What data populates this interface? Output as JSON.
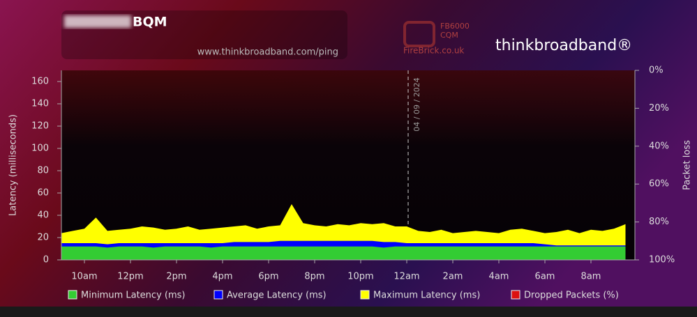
{
  "chart_data": {
    "type": "area",
    "title": "BQM",
    "subtitle": "www.thinkbroadband.com/ping",
    "logos": [
      "FB6000",
      "CQM",
      "FireBrick.co.uk",
      "thinkbroadband®"
    ],
    "annotation": "04 / 09 / 2024",
    "y_label": "Latency (milliseconds)",
    "y2_label": "Packet loss",
    "categories": [
      null,
      null,
      "10am",
      null,
      null,
      null,
      "12pm",
      null,
      null,
      null,
      "2pm",
      null,
      null,
      null,
      "4pm",
      null,
      null,
      null,
      "6pm",
      null,
      null,
      null,
      "8pm",
      null,
      null,
      null,
      "10pm",
      null,
      null,
      null,
      "12am",
      null,
      null,
      null,
      "2am",
      null,
      null,
      null,
      "4am",
      null,
      null,
      null,
      "6am",
      null,
      null,
      null,
      "8am",
      null,
      null,
      null
    ],
    "ylim": [
      0,
      170
    ],
    "yticks": [
      0,
      20,
      40,
      60,
      80,
      100,
      120,
      140,
      160
    ],
    "y2lim": [
      100,
      0
    ],
    "y2ticks": [
      {
        "value": 0,
        "label": "0%"
      },
      {
        "value": 20,
        "label": "20%"
      },
      {
        "value": 40,
        "label": "40%"
      },
      {
        "value": 60,
        "label": "60%"
      },
      {
        "value": 80,
        "label": "80%"
      },
      {
        "value": 100,
        "label": "100%"
      }
    ],
    "series": [
      {
        "name": "Maximum Latency (ms)",
        "color": "#ffff00",
        "values": [
          24,
          26,
          28,
          38,
          26,
          27,
          28,
          30,
          29,
          27,
          28,
          30,
          27,
          28,
          29,
          30,
          31,
          28,
          30,
          31,
          50,
          33,
          31,
          30,
          32,
          31,
          33,
          32,
          33,
          30,
          30,
          26,
          25,
          27,
          24,
          25,
          26,
          25,
          24,
          27,
          28,
          26,
          24,
          25,
          27,
          24,
          27,
          26,
          28,
          32
        ]
      },
      {
        "name": "Average Latency (ms)",
        "color": "#0000ff",
        "values": [
          15,
          15,
          15,
          15,
          14,
          15,
          15,
          15,
          15,
          15,
          15,
          15,
          15,
          15,
          15,
          16,
          16,
          16,
          16,
          17,
          17,
          17,
          17,
          17,
          17,
          17,
          17,
          17,
          16,
          16,
          15,
          15,
          15,
          15,
          15,
          15,
          15,
          15,
          15,
          15,
          15,
          15,
          14,
          13,
          13,
          13,
          13,
          13,
          13,
          13
        ]
      },
      {
        "name": "Minimum Latency (ms)",
        "color": "#33cc33",
        "values": [
          12,
          12,
          12,
          12,
          11,
          12,
          12,
          12,
          11,
          12,
          12,
          12,
          12,
          11,
          12,
          12,
          12,
          12,
          12,
          12,
          12,
          12,
          12,
          12,
          12,
          12,
          12,
          12,
          11,
          12,
          12,
          12,
          12,
          12,
          12,
          12,
          12,
          12,
          12,
          12,
          12,
          12,
          12,
          12,
          12,
          12,
          12,
          12,
          12,
          12
        ]
      },
      {
        "name": "Dropped Packets (%)",
        "color": "#dd1111",
        "axis": "y2",
        "values": [
          0,
          0,
          0,
          0,
          0,
          0,
          0,
          0,
          0,
          0,
          0,
          0,
          0,
          0,
          0,
          0,
          0,
          0,
          0,
          0,
          0,
          0,
          0,
          0,
          0,
          0,
          0,
          0,
          0,
          0,
          0,
          0,
          0,
          0,
          0,
          0,
          0,
          0,
          0,
          0,
          0,
          0,
          0,
          0,
          0,
          0,
          0,
          0,
          0,
          0
        ]
      }
    ],
    "legend_order": [
      2,
      1,
      0,
      3
    ]
  }
}
